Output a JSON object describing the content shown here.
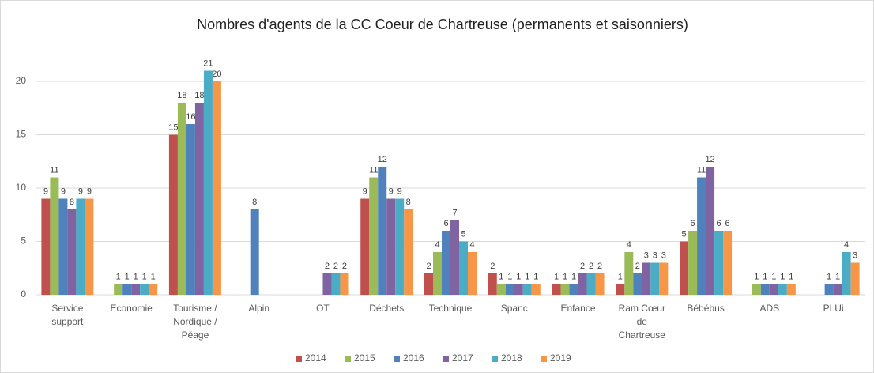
{
  "chart_data": {
    "type": "bar",
    "title": "Nombres d'agents de la CC Coeur de Chartreuse (permanents et saisonniers)",
    "categories": [
      "Service support",
      "Economie",
      "Tourisme / Nordique / Péage",
      "Alpin",
      "OT",
      "Déchets",
      "Technique",
      "Spanc",
      "Enfance",
      "Ram Cœur de Chartreuse",
      "Bébébus",
      "ADS",
      "PLUi"
    ],
    "series": [
      {
        "name": "2014",
        "color": "#c0504d",
        "values": [
          9,
          null,
          15,
          null,
          null,
          9,
          2,
          2,
          1,
          1,
          5,
          null,
          null
        ]
      },
      {
        "name": "2015",
        "color": "#9bbb59",
        "values": [
          11,
          1,
          18,
          null,
          null,
          11,
          4,
          1,
          1,
          4,
          6,
          1,
          null
        ]
      },
      {
        "name": "2016",
        "color": "#4f81bd",
        "values": [
          9,
          1,
          16,
          8,
          null,
          12,
          6,
          1,
          1,
          2,
          11,
          1,
          1
        ]
      },
      {
        "name": "2017",
        "color": "#8064a2",
        "values": [
          8,
          1,
          18,
          null,
          2,
          9,
          7,
          1,
          2,
          3,
          12,
          1,
          1
        ]
      },
      {
        "name": "2018",
        "color": "#4bacc6",
        "values": [
          9,
          1,
          21,
          null,
          2,
          9,
          5,
          1,
          2,
          3,
          6,
          1,
          4
        ]
      },
      {
        "name": "2019",
        "color": "#f79646",
        "values": [
          9,
          1,
          20,
          null,
          2,
          8,
          4,
          1,
          2,
          3,
          6,
          1,
          3
        ]
      }
    ],
    "ylim": [
      0,
      22
    ],
    "yticks": [
      0,
      5,
      10,
      15,
      20
    ],
    "grid": true,
    "legend": "bottom"
  }
}
